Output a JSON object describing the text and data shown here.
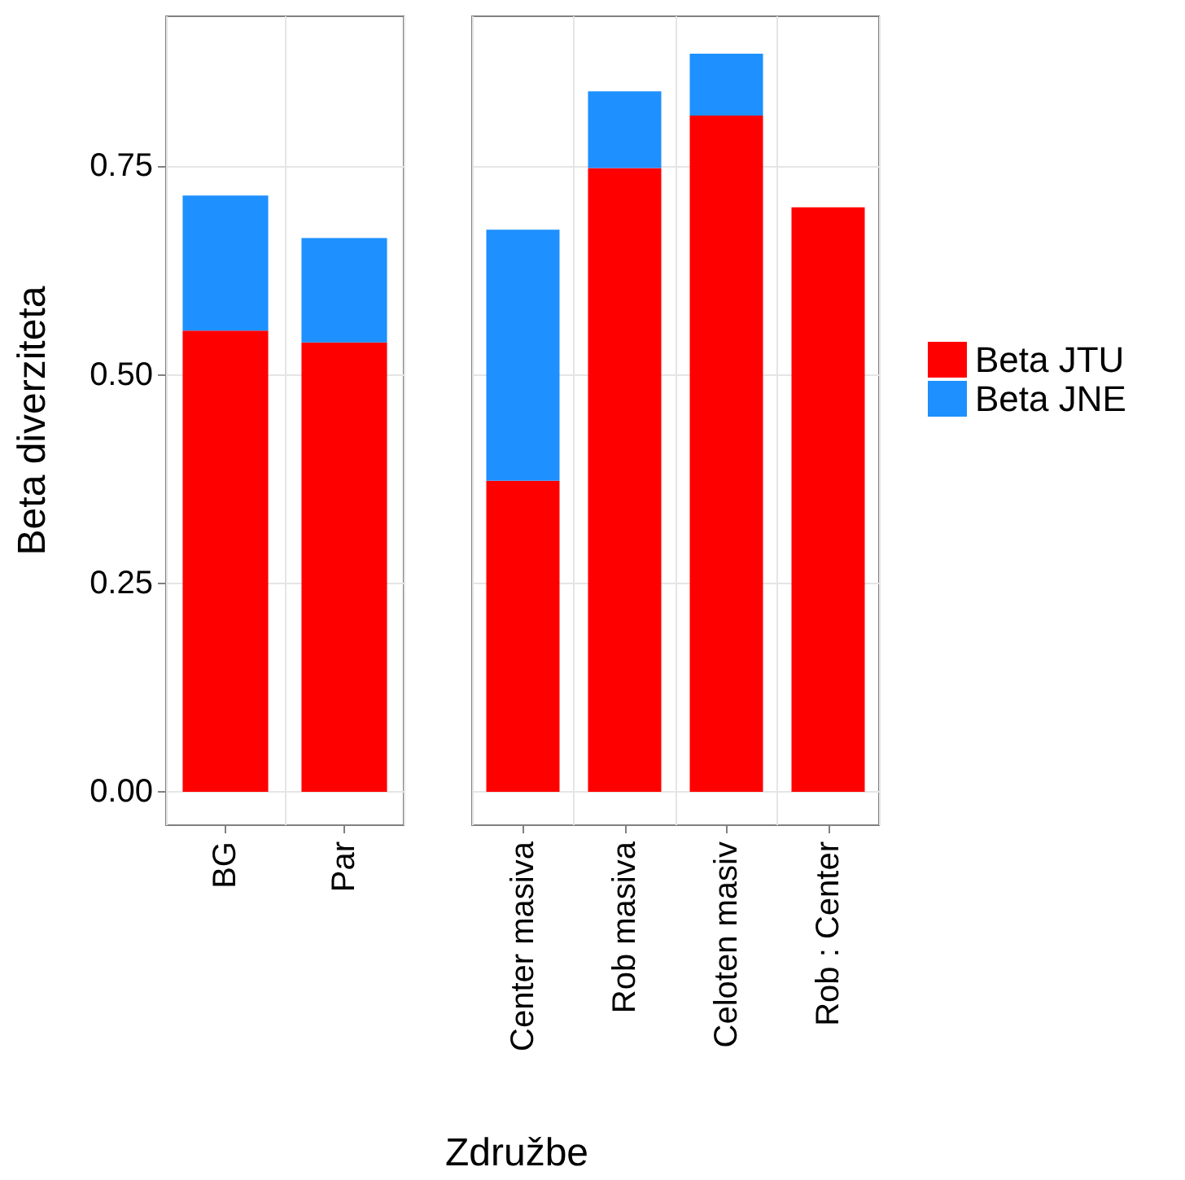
{
  "chart_data": [
    {
      "type": "bar",
      "ylabel": "Beta diverziteta",
      "xlabel": "Združbe",
      "categories": [
        "BG",
        "Par"
      ],
      "stacked": true,
      "grid": true,
      "ylim": [
        -0.04,
        0.93
      ],
      "yticks": [
        {
          "value": 0,
          "label": "0.00"
        },
        {
          "value": 0.25,
          "label": "0.25"
        },
        {
          "value": 0.5,
          "label": "0.50"
        },
        {
          "value": 0.75,
          "label": "0.75"
        }
      ],
      "series": [
        {
          "color": "#ff0000",
          "values": [
            0.553,
            0.539
          ]
        },
        {
          "color": "#1e90ff",
          "values": [
            0.162,
            0.125
          ]
        }
      ]
    },
    {
      "type": "bar",
      "categories": [
        "Center masiva",
        "Rob masiva",
        "Celoten masiv",
        "Rob : Center"
      ],
      "stacked": true,
      "grid": true,
      "tick_labels": "x",
      "legend": "right",
      "ylim": [
        -0.04,
        0.93
      ],
      "yticks": [
        0,
        0.25,
        0.5,
        0.75
      ],
      "series": [
        {
          "name": "Beta JTU",
          "color": "#ff0000",
          "values": [
            0.373,
            0.748,
            0.811,
            0.701
          ]
        },
        {
          "name": "Beta JNE",
          "color": "#1e90ff",
          "values": [
            0.301,
            0.092,
            0.074,
            null
          ]
        }
      ]
    }
  ]
}
